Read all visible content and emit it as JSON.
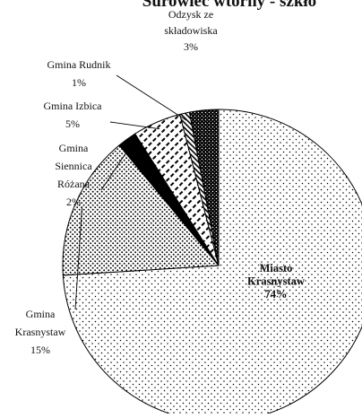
{
  "chart_data": {
    "type": "pie",
    "title": "Surowiec wtórny - szkło",
    "slices": [
      {
        "label_lines": [
          "Miasto",
          "Krasnystaw",
          "74%"
        ],
        "value": 74,
        "pattern": "dots-sparse"
      },
      {
        "label_lines": [
          "Gmina",
          "Krasnystaw",
          "15%"
        ],
        "value": 15,
        "pattern": "dots-dense"
      },
      {
        "label_lines": [
          "Gmina",
          "Siennica",
          "Różana",
          "2%"
        ],
        "value": 2,
        "pattern": "solid-dark"
      },
      {
        "label_lines": [
          "Gmina Izbica",
          "5%"
        ],
        "value": 5,
        "pattern": "diagonal-dashes"
      },
      {
        "label_lines": [
          "Gmina Rudnik",
          "1%"
        ],
        "value": 1,
        "pattern": "diagonal-hatch"
      },
      {
        "label_lines": [
          "Odzysk ze",
          "składowiska",
          "3%"
        ],
        "value": 3,
        "pattern": "crosshatch"
      }
    ]
  }
}
